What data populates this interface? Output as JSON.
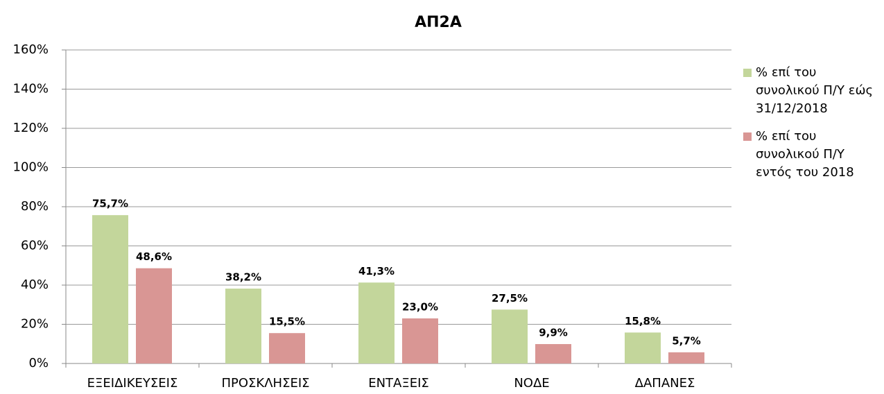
{
  "chart_data": {
    "type": "bar",
    "title": "ΑΠ2Α",
    "categories": [
      "ΕΞΕΙΔΙΚΕΥΣΕΙΣ",
      "ΠΡΟΣΚΛΗΣΕΙΣ",
      "ΕΝΤΑΞΕΙΣ",
      "ΝΟΔΕ",
      "ΔΑΠΑΝΕΣ"
    ],
    "series": [
      {
        "name": "% επί του συνολικού Π/Υ εώς 31/12/2018",
        "color": "#c3d69b",
        "values": [
          75.7,
          38.2,
          41.3,
          27.5,
          15.8
        ],
        "value_labels": [
          "75,7%",
          "38,2%",
          "41,3%",
          "27,5%",
          "15,8%"
        ]
      },
      {
        "name": "% επί του συνολικού Π/Υ εντός του 2018",
        "color": "#d99694",
        "values": [
          48.6,
          15.5,
          23.0,
          9.9,
          5.7
        ],
        "value_labels": [
          "48,6%",
          "15,5%",
          "23,0%",
          "9,9%",
          "5,7%"
        ]
      }
    ],
    "ylim": [
      0,
      160
    ],
    "yticks": [
      {
        "value": 0,
        "label": "0%"
      },
      {
        "value": 20,
        "label": "20%"
      },
      {
        "value": 40,
        "label": "40%"
      },
      {
        "value": 60,
        "label": "60%"
      },
      {
        "value": 80,
        "label": "80%"
      },
      {
        "value": 100,
        "label": "100%"
      },
      {
        "value": 120,
        "label": "120%"
      },
      {
        "value": 140,
        "label": "140%"
      },
      {
        "value": 160,
        "label": "160%"
      }
    ],
    "grid": true,
    "legend": "right"
  }
}
